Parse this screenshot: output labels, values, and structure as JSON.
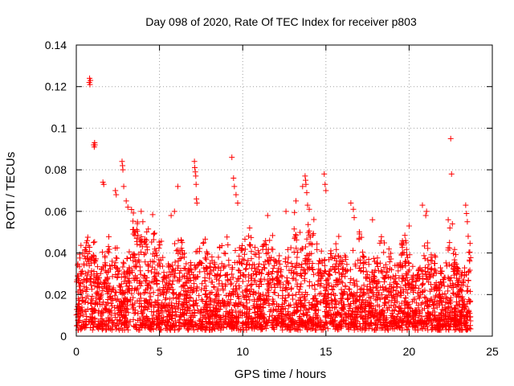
{
  "chart_data": {
    "type": "scatter",
    "title": "Day 098 of 2020, Rate Of TEC Index for receiver p803",
    "xlabel": "GPS time / hours",
    "ylabel": "ROTI / TECUs",
    "xlim": [
      0,
      25
    ],
    "ylim": [
      0,
      0.14
    ],
    "xticks": [
      "0",
      "5",
      "10",
      "15",
      "20",
      "25"
    ],
    "yticks": [
      "0",
      "0.02",
      "0.04",
      "0.06",
      "0.08",
      "0.1",
      "0.12",
      "0.14"
    ],
    "grid": true,
    "marker": "+",
    "color": "#ff0000",
    "series": [
      {
        "values_x": [
          0.78,
          0.8,
          0.82,
          0.85,
          1.05,
          1.08,
          1.1,
          1.12,
          1.6,
          1.65,
          2.35,
          2.4,
          2.75,
          2.78,
          2.8,
          2.85,
          3.0,
          3.1,
          3.9,
          4.0,
          5.7,
          5.9,
          6.1,
          7.1,
          7.12,
          7.15,
          7.18,
          7.2,
          7.22,
          7.25,
          9.35,
          9.45,
          9.5,
          9.6,
          9.7,
          11.5,
          12.6,
          13.2,
          13.6,
          13.75,
          13.78,
          13.8,
          13.85,
          13.9,
          14.0,
          14.9,
          14.95,
          15.0,
          16.5,
          16.65,
          16.7,
          17.8,
          20.0,
          20.8,
          21.0,
          21.05,
          22.35,
          22.45,
          22.5,
          22.55,
          22.6,
          23.4,
          23.45,
          23.5,
          23.55
        ],
        "values_y": [
          0.122,
          0.124,
          0.121,
          0.123,
          0.092,
          0.091,
          0.093,
          0.092,
          0.074,
          0.073,
          0.07,
          0.068,
          0.084,
          0.082,
          0.08,
          0.072,
          0.065,
          0.062,
          0.06,
          0.055,
          0.058,
          0.06,
          0.072,
          0.084,
          0.081,
          0.079,
          0.077,
          0.073,
          0.066,
          0.064,
          0.086,
          0.076,
          0.072,
          0.068,
          0.064,
          0.058,
          0.06,
          0.065,
          0.072,
          0.077,
          0.075,
          0.073,
          0.069,
          0.063,
          0.061,
          0.078,
          0.073,
          0.07,
          0.064,
          0.061,
          0.057,
          0.056,
          0.053,
          0.063,
          0.058,
          0.06,
          0.056,
          0.052,
          0.095,
          0.078,
          0.054,
          0.063,
          0.059,
          0.055,
          0.048
        ]
      }
    ]
  }
}
